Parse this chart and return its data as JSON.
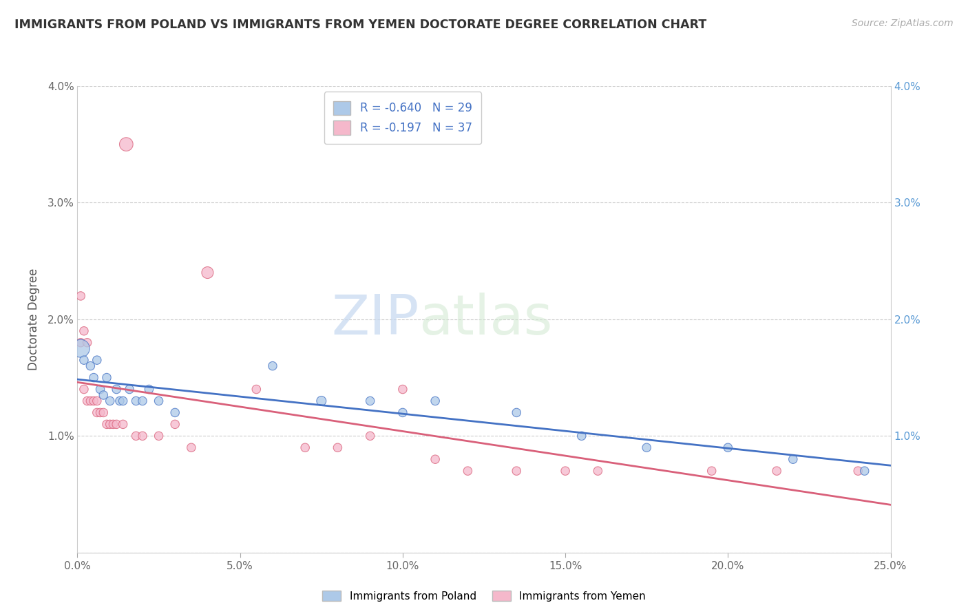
{
  "title": "IMMIGRANTS FROM POLAND VS IMMIGRANTS FROM YEMEN DOCTORATE DEGREE CORRELATION CHART",
  "source": "Source: ZipAtlas.com",
  "ylabel": "Doctorate Degree",
  "watermark_zip": "ZIP",
  "watermark_atlas": "atlas",
  "legend_label1": "Immigrants from Poland",
  "legend_label2": "Immigrants from Yemen",
  "R1": -0.64,
  "N1": 29,
  "R2": -0.197,
  "N2": 37,
  "color_poland": "#adc9e8",
  "color_yemen": "#f5b8cb",
  "line_color_poland": "#4472c4",
  "line_color_yemen": "#d9607a",
  "xlim": [
    0,
    0.25
  ],
  "ylim": [
    0,
    0.04
  ],
  "xticks": [
    0.0,
    0.05,
    0.1,
    0.15,
    0.2,
    0.25
  ],
  "yticks": [
    0.0,
    0.01,
    0.02,
    0.03,
    0.04
  ],
  "xticklabels": [
    "0.0%",
    "5.0%",
    "10.0%",
    "15.0%",
    "20.0%",
    "25.0%"
  ],
  "ylabels_left": [
    "",
    "1.0%",
    "2.0%",
    "3.0%",
    "4.0%"
  ],
  "ylabels_right": [
    "",
    "1.0%",
    "2.0%",
    "3.0%",
    "4.0%"
  ],
  "poland_x": [
    0.001,
    0.002,
    0.004,
    0.005,
    0.006,
    0.007,
    0.008,
    0.009,
    0.01,
    0.012,
    0.013,
    0.014,
    0.016,
    0.018,
    0.02,
    0.022,
    0.025,
    0.03,
    0.06,
    0.075,
    0.09,
    0.1,
    0.11,
    0.135,
    0.155,
    0.175,
    0.2,
    0.22,
    0.242
  ],
  "poland_y": [
    0.0175,
    0.0165,
    0.016,
    0.015,
    0.0165,
    0.014,
    0.0135,
    0.015,
    0.013,
    0.014,
    0.013,
    0.013,
    0.014,
    0.013,
    0.013,
    0.014,
    0.013,
    0.012,
    0.016,
    0.013,
    0.013,
    0.012,
    0.013,
    0.012,
    0.01,
    0.009,
    0.009,
    0.008,
    0.007
  ],
  "poland_size": [
    350,
    80,
    80,
    80,
    80,
    80,
    80,
    80,
    80,
    80,
    80,
    80,
    80,
    80,
    80,
    80,
    80,
    80,
    80,
    100,
    80,
    80,
    80,
    80,
    80,
    80,
    80,
    80,
    80
  ],
  "yemen_x": [
    0.001,
    0.001,
    0.002,
    0.002,
    0.003,
    0.003,
    0.004,
    0.005,
    0.006,
    0.006,
    0.007,
    0.008,
    0.009,
    0.01,
    0.011,
    0.012,
    0.014,
    0.015,
    0.018,
    0.02,
    0.025,
    0.03,
    0.035,
    0.04,
    0.055,
    0.07,
    0.08,
    0.09,
    0.1,
    0.11,
    0.12,
    0.135,
    0.15,
    0.16,
    0.195,
    0.215,
    0.24
  ],
  "yemen_y": [
    0.022,
    0.018,
    0.019,
    0.014,
    0.018,
    0.013,
    0.013,
    0.013,
    0.013,
    0.012,
    0.012,
    0.012,
    0.011,
    0.011,
    0.011,
    0.011,
    0.011,
    0.035,
    0.01,
    0.01,
    0.01,
    0.011,
    0.009,
    0.024,
    0.014,
    0.009,
    0.009,
    0.01,
    0.014,
    0.008,
    0.007,
    0.007,
    0.007,
    0.007,
    0.007,
    0.007,
    0.007
  ],
  "yemen_size": [
    80,
    80,
    80,
    80,
    80,
    80,
    80,
    80,
    80,
    80,
    80,
    80,
    80,
    80,
    80,
    80,
    80,
    200,
    80,
    80,
    80,
    80,
    80,
    150,
    80,
    80,
    80,
    80,
    80,
    80,
    80,
    80,
    80,
    80,
    80,
    80,
    80
  ],
  "dot_size_default": 60
}
